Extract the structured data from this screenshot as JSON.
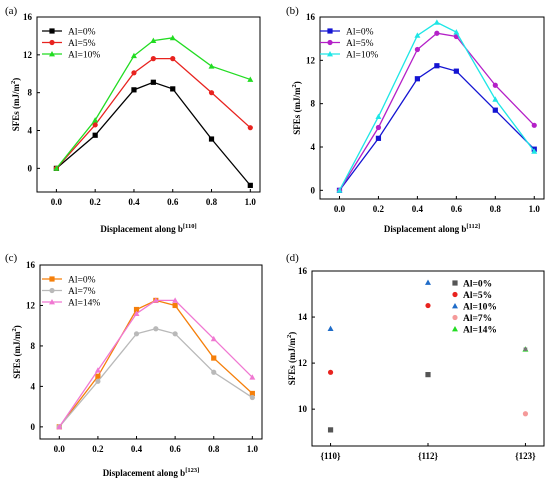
{
  "chart_data": [
    {
      "panel": "(a)",
      "type": "line",
      "xlabel": "Displacement along b",
      "xlabel_sup": "[110]",
      "ylabel": "SFEs (mJ/m",
      "ylabel_sup": "2",
      "ylabel_end": ")",
      "xlim": [
        -0.1,
        1.05
      ],
      "ylim": [
        -2.5,
        16
      ],
      "xticks": [
        0.0,
        0.2,
        0.4,
        0.6,
        0.8,
        1.0
      ],
      "xtick_labels": [
        "0.0",
        "0.2",
        "0.4",
        "0.6",
        "0.8",
        "1.0"
      ],
      "yticks": [
        0,
        4,
        8,
        12,
        16
      ],
      "ytick_labels": [
        "0",
        "4",
        "8",
        "12",
        "16"
      ],
      "legend_position": "top-left",
      "series": [
        {
          "name": "Al=0%",
          "color": "#000000",
          "marker": "square",
          "x": [
            0,
            0.2,
            0.4,
            0.5,
            0.6,
            0.8,
            1.0
          ],
          "y": [
            0,
            3.5,
            8.3,
            9.1,
            8.4,
            3.1,
            -1.8
          ]
        },
        {
          "name": "Al=5%",
          "color": "#e8231f",
          "marker": "circle",
          "x": [
            0,
            0.2,
            0.4,
            0.5,
            0.6,
            0.8,
            1.0
          ],
          "y": [
            0,
            4.6,
            10.1,
            11.6,
            11.6,
            8.0,
            4.3
          ]
        },
        {
          "name": "Al=10%",
          "color": "#22dc22",
          "marker": "triangle",
          "x": [
            0,
            0.2,
            0.4,
            0.5,
            0.6,
            0.8,
            1.0
          ],
          "y": [
            0,
            5.1,
            11.9,
            13.5,
            13.8,
            10.8,
            9.4
          ]
        }
      ]
    },
    {
      "panel": "(b)",
      "type": "line",
      "xlabel": "Displacement along b",
      "xlabel_sup": "[112]",
      "ylabel": "SFEs (mJ/m",
      "ylabel_sup": "2",
      "ylabel_end": ")",
      "xlim": [
        -0.1,
        1.05
      ],
      "ylim": [
        -0.8,
        16
      ],
      "xticks": [
        0.0,
        0.2,
        0.4,
        0.6,
        0.8,
        1.0
      ],
      "xtick_labels": [
        "0.0",
        "0.2",
        "0.4",
        "0.6",
        "0.8",
        "1.0"
      ],
      "yticks": [
        0,
        4,
        8,
        12,
        16
      ],
      "ytick_labels": [
        "0",
        "4",
        "8",
        "12",
        "16"
      ],
      "legend_position": "top-left",
      "series": [
        {
          "name": "Al=0%",
          "color": "#1414d2",
          "marker": "square",
          "x": [
            0,
            0.2,
            0.4,
            0.5,
            0.6,
            0.8,
            1.0
          ],
          "y": [
            0,
            4.8,
            10.3,
            11.5,
            11.0,
            7.4,
            3.8
          ]
        },
        {
          "name": "Al=5%",
          "color": "#b420c8",
          "marker": "circle",
          "x": [
            0,
            0.2,
            0.4,
            0.5,
            0.6,
            0.8,
            1.0
          ],
          "y": [
            0,
            5.8,
            13.0,
            14.5,
            14.2,
            9.7,
            6.0
          ]
        },
        {
          "name": "Al=10%",
          "color": "#1ee6e6",
          "marker": "triangle",
          "x": [
            0,
            0.2,
            0.4,
            0.5,
            0.6,
            0.8,
            1.0
          ],
          "y": [
            0,
            6.8,
            14.3,
            15.5,
            14.6,
            8.4,
            3.6
          ]
        }
      ]
    },
    {
      "panel": "(c)",
      "type": "line",
      "xlabel": "Displacement along b",
      "xlabel_sup": "[123]",
      "ylabel": "SFEs (mJ/m",
      "ylabel_sup": "2",
      "ylabel_end": ")",
      "xlim": [
        -0.1,
        1.05
      ],
      "ylim": [
        -1.2,
        16
      ],
      "xticks": [
        0.0,
        0.2,
        0.4,
        0.6,
        0.8,
        1.0
      ],
      "xtick_labels": [
        "0.0",
        "0.2",
        "0.4",
        "0.6",
        "0.8",
        "1.0"
      ],
      "yticks": [
        0,
        4,
        8,
        12,
        16
      ],
      "ytick_labels": [
        "0",
        "4",
        "8",
        "12",
        "16"
      ],
      "legend_position": "top-left",
      "series": [
        {
          "name": "Al=0%",
          "color": "#f57f0a",
          "marker": "square",
          "x": [
            0,
            0.2,
            0.4,
            0.5,
            0.6,
            0.8,
            1.0
          ],
          "y": [
            0,
            5.0,
            11.6,
            12.5,
            12.0,
            6.8,
            3.3
          ]
        },
        {
          "name": "Al=7%",
          "color": "#b9b9b9",
          "marker": "circle",
          "x": [
            0,
            0.2,
            0.4,
            0.5,
            0.6,
            0.8,
            1.0
          ],
          "y": [
            0,
            4.5,
            9.2,
            9.7,
            9.2,
            5.4,
            2.9
          ]
        },
        {
          "name": "Al=14%",
          "color": "#f078d2",
          "marker": "triangle",
          "x": [
            0,
            0.2,
            0.4,
            0.5,
            0.6,
            0.8,
            1.0
          ],
          "y": [
            0,
            5.6,
            11.2,
            12.5,
            12.5,
            8.7,
            4.9
          ]
        }
      ]
    },
    {
      "panel": "(d)",
      "type": "scatter",
      "categories": [
        "{110}",
        "{112}",
        "{123}"
      ],
      "ylabel": "SFEs (mJ/m",
      "ylabel_sup": "2",
      "ylabel_end": ")",
      "ylim": [
        8.4,
        16
      ],
      "yticks": [
        10,
        12,
        14,
        16
      ],
      "ytick_labels": [
        "10",
        "12",
        "14",
        "16"
      ],
      "legend_position": "top-right",
      "series": [
        {
          "name": "Al=0%",
          "color": "#555555",
          "marker": "square",
          "values": [
            9.1,
            11.5,
            null
          ]
        },
        {
          "name": "Al=5%",
          "color": "#e8231f",
          "marker": "circle",
          "values": [
            11.6,
            14.5,
            null
          ]
        },
        {
          "name": "Al=10%",
          "color": "#1f6cc8",
          "marker": "triangle",
          "values": [
            13.5,
            15.5,
            null
          ]
        },
        {
          "name": "Al=7%",
          "color": "#f59a9a",
          "marker": "circle",
          "values": [
            null,
            null,
            9.8
          ]
        },
        {
          "name": "Al=14%",
          "color": "#22dc22",
          "marker": "triangle",
          "values": [
            null,
            null,
            12.6
          ]
        }
      ],
      "overlay_points": [
        {
          "category": "{123}",
          "value": 12.6,
          "color": "#777777",
          "marker": "square"
        }
      ]
    }
  ]
}
